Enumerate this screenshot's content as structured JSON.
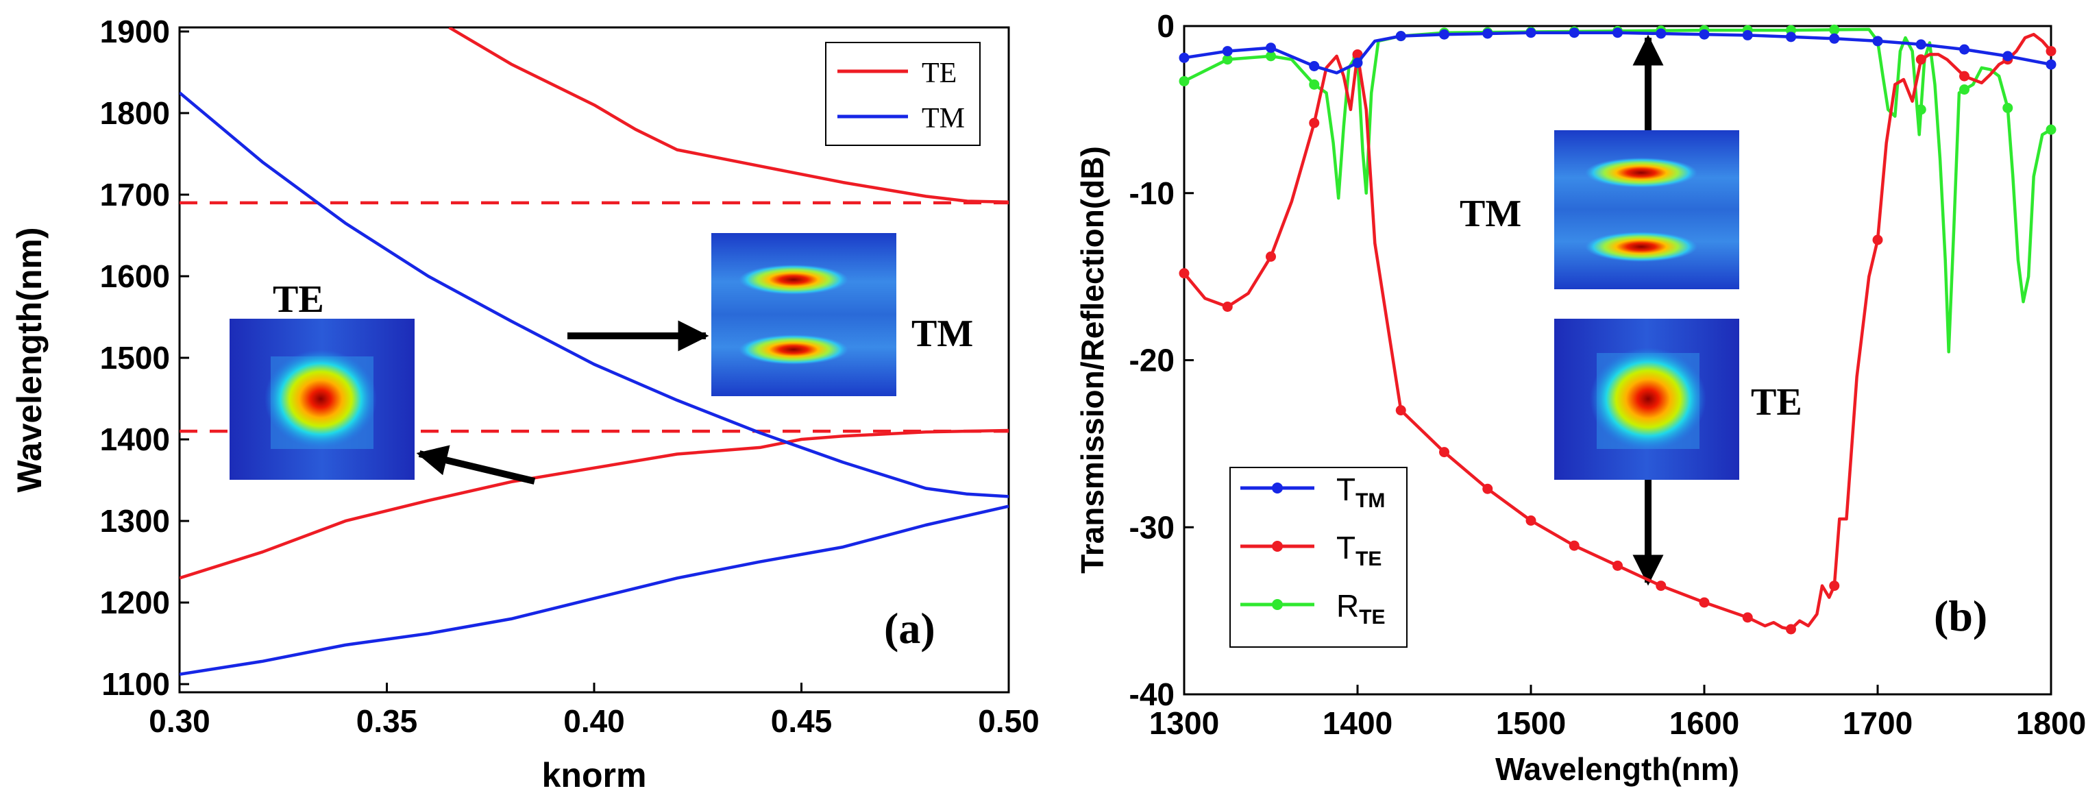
{
  "colors": {
    "te": "#ee1c24",
    "tm": "#1626e6",
    "r": "#2fe82f",
    "axis": "#000000"
  },
  "chart_data": [
    {
      "type": "line",
      "panel": "(a)",
      "xlabel": "knorm",
      "ylabel": "Wavelength(nm)",
      "xlim": [
        0.3,
        0.5
      ],
      "ylim": [
        1090,
        1905
      ],
      "xticks": [
        "0.30",
        "0.35",
        "0.40",
        "0.45",
        "0.50"
      ],
      "xtick_values": [
        0.3,
        0.35,
        0.4,
        0.45,
        0.5
      ],
      "yticks": [
        "1100",
        "1200",
        "1300",
        "1400",
        "1500",
        "1600",
        "1700",
        "1800",
        "1900"
      ],
      "ytick_values": [
        1100,
        1200,
        1300,
        1400,
        1500,
        1600,
        1700,
        1800,
        1900
      ],
      "legend": [
        "TE",
        "TM"
      ],
      "legend_position": "top-right",
      "series": [
        {
          "name": "TE",
          "color": "te",
          "x": [
            0.365,
            0.38,
            0.4,
            0.41,
            0.42,
            0.44,
            0.46,
            0.48,
            0.49,
            0.5
          ],
          "y": [
            1905,
            1860,
            1810,
            1780,
            1755,
            1735,
            1715,
            1698,
            1692,
            1691
          ]
        },
        {
          "name": "TE",
          "color": "te",
          "x": [
            0.3,
            0.32,
            0.34,
            0.36,
            0.38,
            0.4,
            0.42,
            0.44,
            0.45,
            0.46,
            0.48,
            0.5
          ],
          "y": [
            1230,
            1262,
            1300,
            1325,
            1348,
            1365,
            1382,
            1390,
            1400,
            1404,
            1409,
            1411
          ]
        },
        {
          "name": "TM",
          "color": "tm",
          "x": [
            0.3,
            0.32,
            0.34,
            0.36,
            0.38,
            0.4,
            0.42,
            0.44,
            0.46,
            0.48,
            0.49,
            0.5
          ],
          "y": [
            1825,
            1740,
            1665,
            1600,
            1545,
            1492,
            1448,
            1408,
            1372,
            1340,
            1333,
            1330
          ]
        },
        {
          "name": "TM",
          "color": "tm",
          "x": [
            0.3,
            0.32,
            0.34,
            0.36,
            0.38,
            0.4,
            0.42,
            0.44,
            0.46,
            0.48,
            0.5
          ],
          "y": [
            1112,
            1128,
            1148,
            1162,
            1180,
            1205,
            1230,
            1250,
            1268,
            1295,
            1318
          ]
        }
      ],
      "reference_lines": [
        {
          "y": 1690,
          "color": "te",
          "style": "dashed"
        },
        {
          "y": 1410,
          "color": "te",
          "style": "dashed"
        }
      ],
      "annotations": [
        "TE",
        "TM"
      ]
    },
    {
      "type": "line",
      "panel": "(b)",
      "xlabel": "Wavelength(nm)",
      "ylabel": "Transmission/Reflection(dB)",
      "xlim": [
        1300,
        1800
      ],
      "ylim": [
        -40,
        0
      ],
      "xticks": [
        "1300",
        "1400",
        "1500",
        "1600",
        "1700",
        "1800"
      ],
      "xtick_values": [
        1300,
        1400,
        1500,
        1600,
        1700,
        1800
      ],
      "yticks": [
        "0",
        "-10",
        "-20",
        "-30",
        "-40"
      ],
      "ytick_values": [
        0,
        -10,
        -20,
        -30,
        -40
      ],
      "legend": [
        {
          "main": "T",
          "sub": "TM",
          "color": "tm"
        },
        {
          "main": "T",
          "sub": "TE",
          "color": "te"
        },
        {
          "main": "R",
          "sub": "TE",
          "color": "r"
        }
      ],
      "legend_position": "bottom-left",
      "series": [
        {
          "name": "TTM",
          "color": "tm",
          "x": [
            1300,
            1325,
            1350,
            1375,
            1388,
            1400,
            1410,
            1425,
            1450,
            1475,
            1500,
            1525,
            1550,
            1575,
            1600,
            1625,
            1650,
            1675,
            1700,
            1725,
            1750,
            1775,
            1800
          ],
          "y": [
            -1.9,
            -1.5,
            -1.3,
            -2.4,
            -2.8,
            -2.2,
            -0.9,
            -0.6,
            -0.5,
            -0.45,
            -0.4,
            -0.4,
            -0.4,
            -0.45,
            -0.5,
            -0.55,
            -0.65,
            -0.75,
            -0.9,
            -1.1,
            -1.4,
            -1.8,
            -2.3
          ]
        },
        {
          "name": "TTE",
          "color": "te",
          "x": [
            1300,
            1312,
            1325,
            1337,
            1350,
            1362,
            1375,
            1382,
            1388,
            1392,
            1396,
            1400,
            1405,
            1410,
            1425,
            1450,
            1475,
            1500,
            1525,
            1550,
            1575,
            1600,
            1625,
            1635,
            1640,
            1645,
            1650,
            1655,
            1660,
            1665,
            1668,
            1672,
            1675,
            1678,
            1682,
            1688,
            1695,
            1700,
            1705,
            1710,
            1715,
            1720,
            1725,
            1730,
            1735,
            1740,
            1750,
            1760,
            1765,
            1770,
            1775,
            1780,
            1785,
            1790,
            1795,
            1800
          ],
          "y": [
            -14.8,
            -16.3,
            -16.8,
            -16.0,
            -13.8,
            -10.5,
            -5.8,
            -2.5,
            -1.8,
            -3.0,
            -5.0,
            -1.7,
            -5.0,
            -13.0,
            -23.0,
            -25.5,
            -27.7,
            -29.6,
            -31.1,
            -32.3,
            -33.5,
            -34.5,
            -35.4,
            -35.9,
            -35.7,
            -36.0,
            -36.1,
            -35.6,
            -35.9,
            -35.2,
            -33.5,
            -34.2,
            -33.5,
            -29.5,
            -29.5,
            -21.0,
            -15.0,
            -12.8,
            -7.0,
            -3.5,
            -3.2,
            -4.5,
            -2.0,
            -1.7,
            -1.7,
            -2.0,
            -3.0,
            -3.4,
            -2.9,
            -2.3,
            -2.0,
            -1.5,
            -0.7,
            -0.5,
            -0.9,
            -1.5
          ]
        },
        {
          "name": "RTE",
          "color": "r",
          "x": [
            1300,
            1325,
            1350,
            1362,
            1375,
            1382,
            1386,
            1389,
            1392,
            1395,
            1398,
            1400,
            1403,
            1405,
            1408,
            1412,
            1425,
            1450,
            1500,
            1550,
            1600,
            1650,
            1695,
            1700,
            1703,
            1706,
            1710,
            1713,
            1716,
            1720,
            1722,
            1724,
            1727,
            1730,
            1733,
            1736,
            1739,
            1741,
            1744,
            1747,
            1750,
            1755,
            1760,
            1765,
            1770,
            1775,
            1778,
            1781,
            1784,
            1787,
            1790,
            1795,
            1800
          ],
          "y": [
            -3.3,
            -2.0,
            -1.8,
            -2.0,
            -3.5,
            -4.0,
            -7.0,
            -10.3,
            -6.0,
            -2.5,
            -2.0,
            -1.9,
            -7.5,
            -10.0,
            -4.0,
            -0.9,
            -0.6,
            -0.4,
            -0.35,
            -0.3,
            -0.25,
            -0.25,
            -0.2,
            -0.9,
            -3.0,
            -5.0,
            -5.4,
            -1.5,
            -0.7,
            -1.5,
            -4.0,
            -6.5,
            -2.0,
            -1.0,
            -3.5,
            -8.0,
            -14.0,
            -19.5,
            -12.0,
            -4.0,
            -3.8,
            -3.5,
            -2.5,
            -2.6,
            -3.0,
            -4.9,
            -9.0,
            -14.0,
            -16.5,
            -15.0,
            -9.0,
            -6.5,
            -6.2
          ]
        }
      ],
      "annotations": [
        "TM",
        "TE"
      ]
    }
  ]
}
